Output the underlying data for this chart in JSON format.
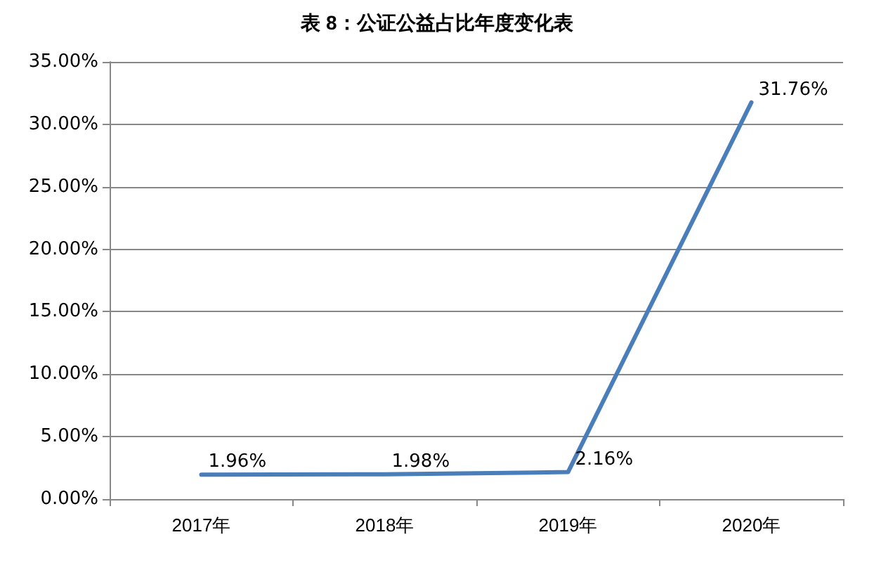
{
  "chart_data": {
    "type": "line",
    "title": "表 8：公证公益占比年度变化表",
    "categories": [
      "2017年",
      "2018年",
      "2019年",
      "2020年"
    ],
    "series": [
      {
        "color": "#4a7ebb",
        "values": [
          1.96,
          1.98,
          2.16,
          31.76
        ],
        "value_labels": [
          "1.96%",
          "1.98%",
          "2.16%",
          "31.76%"
        ]
      }
    ],
    "ylim": [
      0,
      35
    ],
    "yticks": [
      {
        "value": 0,
        "label": "0.00%"
      },
      {
        "value": 5,
        "label": "5.00%"
      },
      {
        "value": 10,
        "label": "10.00%"
      },
      {
        "value": 15,
        "label": "15.00%"
      },
      {
        "value": 20,
        "label": "20.00%"
      },
      {
        "value": 25,
        "label": "25.00%"
      },
      {
        "value": 30,
        "label": "30.00%"
      },
      {
        "value": 35,
        "label": "35.00%"
      }
    ],
    "grid": "y",
    "marker": "none",
    "line_style": "solid"
  }
}
